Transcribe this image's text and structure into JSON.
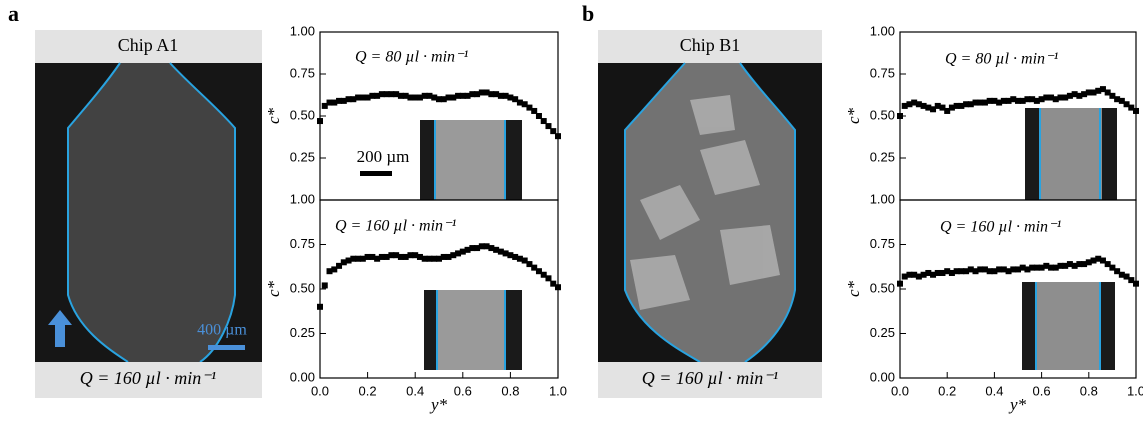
{
  "panels": [
    {
      "label": "a",
      "image": {
        "title": "Chip A1",
        "caption": "Q = 160 µl · min⁻¹",
        "scale_bar": "400 µm"
      }
    },
    {
      "label": "b",
      "image": {
        "title": "Chip B1",
        "caption": "Q = 160 µl · min⁻¹"
      }
    }
  ],
  "chart_data": [
    {
      "type": "scatter",
      "annotation": "Q = 80 µl · min⁻¹",
      "inset_scale_bar": "200 µm",
      "y_label": "c*",
      "color": "#000000",
      "x": [
        0,
        0.02,
        0.04,
        0.06,
        0.08,
        0.1,
        0.12,
        0.14,
        0.16,
        0.18,
        0.2,
        0.22,
        0.24,
        0.26,
        0.28,
        0.3,
        0.32,
        0.34,
        0.36,
        0.38,
        0.4,
        0.42,
        0.44,
        0.46,
        0.48,
        0.5,
        0.52,
        0.54,
        0.56,
        0.58,
        0.6,
        0.62,
        0.64,
        0.66,
        0.68,
        0.7,
        0.72,
        0.74,
        0.76,
        0.78,
        0.8,
        0.82,
        0.84,
        0.86,
        0.88,
        0.9,
        0.92,
        0.94,
        0.96,
        0.98,
        1
      ],
      "values": [
        0.47,
        0.56,
        0.58,
        0.58,
        0.59,
        0.59,
        0.6,
        0.6,
        0.61,
        0.61,
        0.61,
        0.62,
        0.62,
        0.63,
        0.63,
        0.63,
        0.63,
        0.62,
        0.62,
        0.61,
        0.61,
        0.61,
        0.62,
        0.62,
        0.61,
        0.6,
        0.6,
        0.61,
        0.61,
        0.62,
        0.62,
        0.62,
        0.63,
        0.63,
        0.64,
        0.64,
        0.63,
        0.63,
        0.62,
        0.62,
        0.61,
        0.6,
        0.58,
        0.57,
        0.55,
        0.53,
        0.5,
        0.47,
        0.44,
        0.41,
        0.38
      ],
      "xlim": [
        0,
        1
      ],
      "ylim": [
        0,
        1
      ],
      "yticks": [
        0.25,
        {
          "value": 0.5,
          "label": "0.50"
        },
        0.75,
        {
          "value": 1,
          "label": "1.00"
        }
      ]
    },
    {
      "type": "scatter",
      "annotation": "Q = 160 µl · min⁻¹",
      "y_label": "c*",
      "x_label": "y*",
      "color": "#000000",
      "x": [
        0,
        0.02,
        0.04,
        0.06,
        0.08,
        0.1,
        0.12,
        0.14,
        0.16,
        0.18,
        0.2,
        0.22,
        0.24,
        0.26,
        0.28,
        0.3,
        0.32,
        0.34,
        0.36,
        0.38,
        0.4,
        0.42,
        0.44,
        0.46,
        0.48,
        0.5,
        0.52,
        0.54,
        0.56,
        0.58,
        0.6,
        0.62,
        0.64,
        0.66,
        0.68,
        0.7,
        0.72,
        0.74,
        0.76,
        0.78,
        0.8,
        0.82,
        0.84,
        0.86,
        0.88,
        0.9,
        0.92,
        0.94,
        0.96,
        0.98,
        1
      ],
      "values": [
        0.4,
        0.52,
        0.6,
        0.61,
        0.63,
        0.65,
        0.66,
        0.67,
        0.67,
        0.67,
        0.68,
        0.68,
        0.67,
        0.68,
        0.68,
        0.69,
        0.69,
        0.68,
        0.68,
        0.69,
        0.69,
        0.68,
        0.67,
        0.67,
        0.67,
        0.67,
        0.68,
        0.68,
        0.69,
        0.7,
        0.71,
        0.72,
        0.73,
        0.73,
        0.74,
        0.74,
        0.73,
        0.72,
        0.71,
        0.7,
        0.69,
        0.68,
        0.67,
        0.66,
        0.64,
        0.62,
        0.6,
        0.58,
        0.56,
        0.53,
        0.51
      ],
      "xlim": [
        0,
        1
      ],
      "xticks": [
        {
          "value": 0,
          "label": "0.0"
        },
        0.2,
        0.4,
        0.6,
        0.8,
        {
          "value": 1,
          "label": "1.0"
        }
      ],
      "ylim": [
        0,
        1
      ],
      "yticks": [
        {
          "value": 0,
          "label": "0.00"
        },
        0.25,
        {
          "value": 0.5,
          "label": "0.50"
        },
        0.75,
        {
          "value": 1,
          "label": "1.00"
        }
      ]
    },
    {
      "type": "scatter",
      "annotation": "Q = 80 µl · min⁻¹",
      "y_label": "c*",
      "color": "#000000",
      "x": [
        0,
        0.02,
        0.04,
        0.06,
        0.08,
        0.1,
        0.12,
        0.14,
        0.16,
        0.18,
        0.2,
        0.22,
        0.24,
        0.26,
        0.28,
        0.3,
        0.32,
        0.34,
        0.36,
        0.38,
        0.4,
        0.42,
        0.44,
        0.46,
        0.48,
        0.5,
        0.52,
        0.54,
        0.56,
        0.58,
        0.6,
        0.62,
        0.64,
        0.66,
        0.68,
        0.7,
        0.72,
        0.74,
        0.76,
        0.78,
        0.8,
        0.82,
        0.84,
        0.86,
        0.88,
        0.9,
        0.92,
        0.94,
        0.96,
        0.98,
        1
      ],
      "values": [
        0.5,
        0.56,
        0.57,
        0.58,
        0.57,
        0.56,
        0.55,
        0.54,
        0.56,
        0.55,
        0.53,
        0.55,
        0.56,
        0.56,
        0.57,
        0.57,
        0.58,
        0.58,
        0.58,
        0.59,
        0.59,
        0.58,
        0.59,
        0.59,
        0.6,
        0.59,
        0.59,
        0.6,
        0.6,
        0.59,
        0.6,
        0.61,
        0.61,
        0.6,
        0.61,
        0.61,
        0.62,
        0.63,
        0.62,
        0.63,
        0.64,
        0.64,
        0.65,
        0.66,
        0.64,
        0.62,
        0.6,
        0.59,
        0.57,
        0.55,
        0.53
      ],
      "xlim": [
        0,
        1
      ],
      "ylim": [
        0,
        1
      ],
      "yticks": [
        0.25,
        {
          "value": 0.5,
          "label": "0.50"
        },
        0.75,
        {
          "value": 1,
          "label": "1.00"
        }
      ]
    },
    {
      "type": "scatter",
      "annotation": "Q = 160 µl · min⁻¹",
      "y_label": "c*",
      "x_label": "y*",
      "color": "#000000",
      "x": [
        0,
        0.02,
        0.04,
        0.06,
        0.08,
        0.1,
        0.12,
        0.14,
        0.16,
        0.18,
        0.2,
        0.22,
        0.24,
        0.26,
        0.28,
        0.3,
        0.32,
        0.34,
        0.36,
        0.38,
        0.4,
        0.42,
        0.44,
        0.46,
        0.48,
        0.5,
        0.52,
        0.54,
        0.56,
        0.58,
        0.6,
        0.62,
        0.64,
        0.66,
        0.68,
        0.7,
        0.72,
        0.74,
        0.76,
        0.78,
        0.8,
        0.82,
        0.84,
        0.86,
        0.88,
        0.9,
        0.92,
        0.94,
        0.96,
        0.98,
        1
      ],
      "values": [
        0.53,
        0.57,
        0.58,
        0.58,
        0.57,
        0.58,
        0.59,
        0.58,
        0.59,
        0.59,
        0.6,
        0.59,
        0.6,
        0.6,
        0.6,
        0.61,
        0.6,
        0.61,
        0.61,
        0.6,
        0.6,
        0.61,
        0.61,
        0.6,
        0.61,
        0.61,
        0.62,
        0.61,
        0.62,
        0.62,
        0.62,
        0.63,
        0.62,
        0.62,
        0.63,
        0.63,
        0.64,
        0.63,
        0.64,
        0.64,
        0.65,
        0.66,
        0.67,
        0.66,
        0.64,
        0.62,
        0.6,
        0.58,
        0.57,
        0.55,
        0.53
      ],
      "xlim": [
        0,
        1
      ],
      "xticks": [
        {
          "value": 0,
          "label": "0.0"
        },
        0.2,
        0.4,
        0.6,
        0.8,
        {
          "value": 1,
          "label": "1.0"
        }
      ],
      "ylim": [
        0,
        1
      ],
      "yticks": [
        {
          "value": 0,
          "label": "0.00"
        },
        0.25,
        {
          "value": 0.5,
          "label": "0.50"
        },
        0.75,
        {
          "value": 1,
          "label": "1.00"
        }
      ]
    }
  ]
}
